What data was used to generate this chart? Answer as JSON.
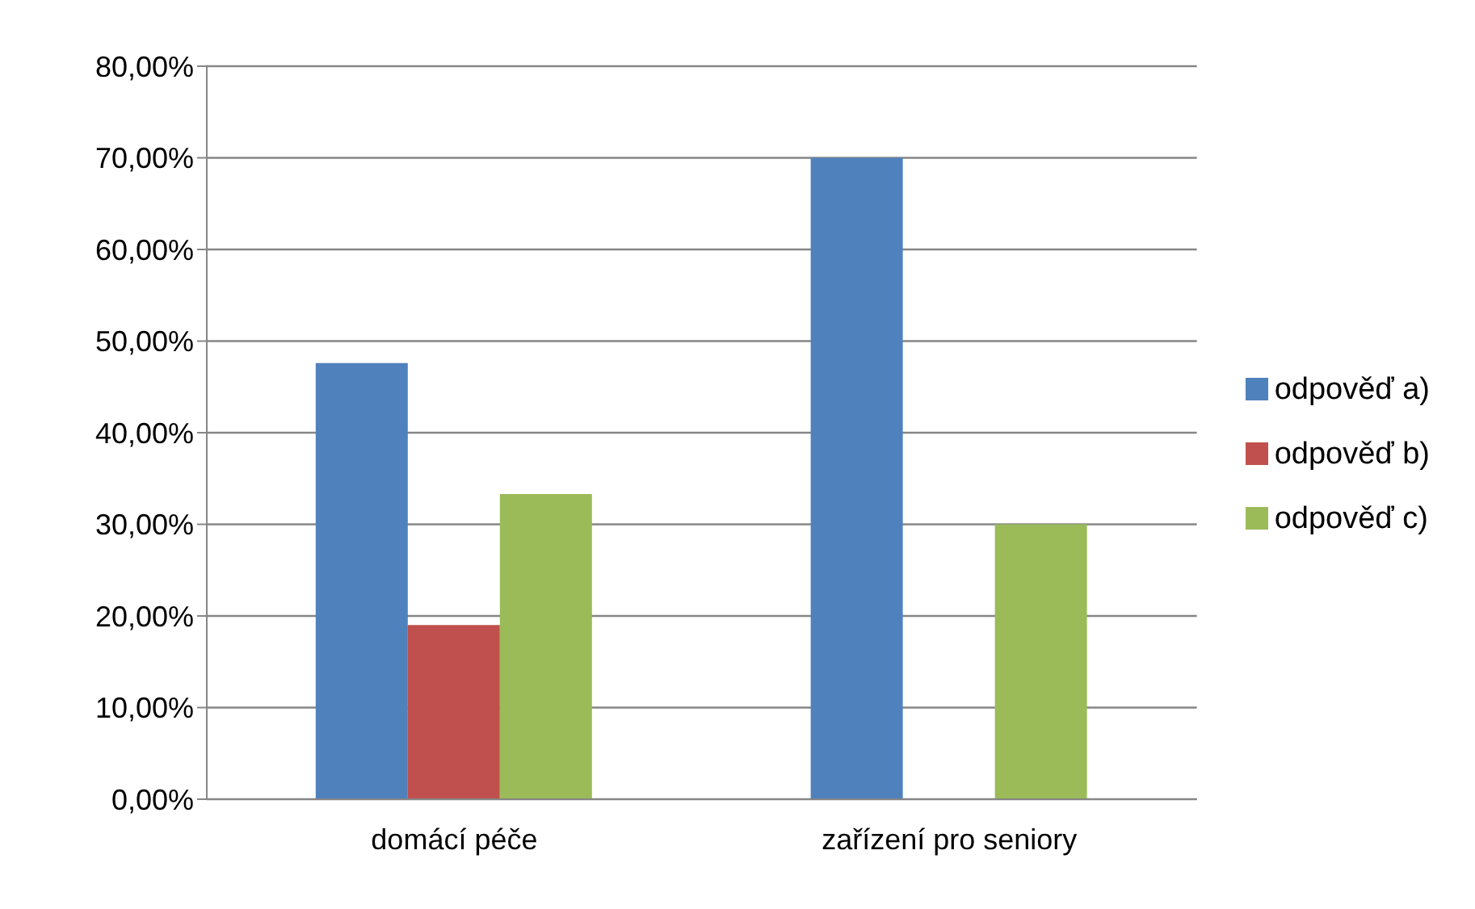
{
  "chart_data": {
    "type": "bar",
    "categories": [
      "domácí péče",
      "zařízení pro seniory"
    ],
    "series": [
      {
        "name": "odpověď a)",
        "color": "#4f81bd",
        "values": [
          47.6,
          70
        ]
      },
      {
        "name": "odpověď b)",
        "color": "#c0504d",
        "values": [
          19,
          0
        ]
      },
      {
        "name": "odpověď c)",
        "color": "#9bbb59",
        "values": [
          33.3,
          30
        ]
      }
    ],
    "ylim": [
      0,
      80
    ],
    "yticks": [
      {
        "value": 0,
        "label": "0,00%"
      },
      {
        "value": 10,
        "label": "10,00%"
      },
      {
        "value": 20,
        "label": "20,00%"
      },
      {
        "value": 30,
        "label": "30,00%"
      },
      {
        "value": 40,
        "label": "40,00%"
      },
      {
        "value": 50,
        "label": "50,00%"
      },
      {
        "value": 60,
        "label": "60,00%"
      },
      {
        "value": 70,
        "label": "70,00%"
      },
      {
        "value": 80,
        "label": "80,00%"
      }
    ],
    "grid": "y",
    "legend": "right"
  }
}
